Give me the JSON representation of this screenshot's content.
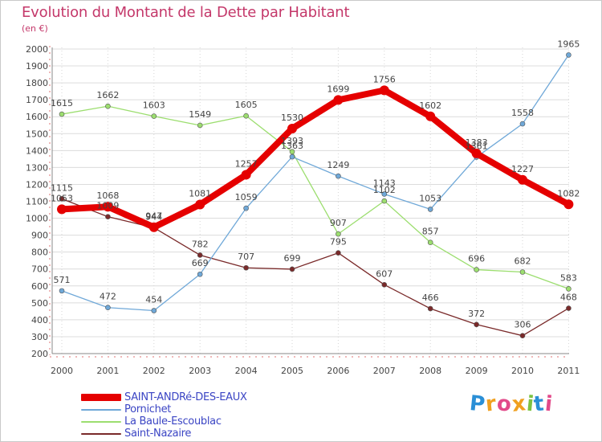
{
  "title": "Evolution du Montant de la Dette par Habitant",
  "subtitle": "(en €)",
  "chart_data": {
    "type": "line",
    "title": "Evolution du Montant de la Dette par Habitant",
    "ylabel": "(en €)",
    "xlabel": "",
    "ylim": [
      200,
      2000
    ],
    "yticks": [
      200,
      300,
      400,
      500,
      600,
      700,
      800,
      900,
      1000,
      1100,
      1200,
      1300,
      1400,
      1500,
      1600,
      1700,
      1800,
      1900,
      2000
    ],
    "x": [
      "2000",
      "2001",
      "2002",
      "2003",
      "2004",
      "2005",
      "2006",
      "2007",
      "2008",
      "2009",
      "2010",
      "2011"
    ],
    "grid": true,
    "legend": "bottom-left",
    "series": [
      {
        "name": "SAINT-ANDRé-DES-EAUX",
        "color": "#e50000",
        "values": [
          1053,
          1068,
          947,
          1081,
          1257,
          1530,
          1699,
          1756,
          1602,
          1383,
          1227,
          1082
        ],
        "labels": [
          "1053",
          "1068",
          "947",
          "1081",
          "1257",
          "1530",
          "1699",
          "1756",
          "1602",
          "1383",
          "1227",
          "1082"
        ]
      },
      {
        "name": "Pornichet",
        "color": "#6fa8d8",
        "values": [
          571,
          472,
          454,
          669,
          1059,
          1363,
          1249,
          1143,
          1053,
          1361,
          1558,
          1965
        ],
        "labels": [
          "571",
          "472",
          "454",
          "669",
          "1059",
          "1363",
          "1249",
          "1143",
          "1053",
          "1361",
          "1558",
          "1965"
        ]
      },
      {
        "name": "La Baule-Escoublac",
        "color": "#9cde6f",
        "values": [
          1615,
          1662,
          1603,
          1549,
          1605,
          1393,
          907,
          1102,
          857,
          696,
          682,
          583
        ],
        "labels": [
          "1615",
          "1662",
          "1603",
          "1549",
          "1605",
          "1393",
          "907",
          "1102",
          "857",
          "696",
          "682",
          "583"
        ]
      },
      {
        "name": "Saint-Nazaire",
        "color": "#7a2a2a",
        "values": [
          1115,
          1009,
          944,
          782,
          707,
          699,
          795,
          607,
          466,
          372,
          306,
          468
        ],
        "labels": [
          "1115",
          "1009",
          "944",
          "782",
          "707",
          "699",
          "795",
          "607",
          "466",
          "372",
          "306",
          "468"
        ]
      }
    ]
  },
  "logo": {
    "letters": [
      "P",
      "r",
      "o",
      "x",
      "i",
      "t",
      "i"
    ],
    "colors": [
      "#2a8fd6",
      "#f0a020",
      "#e24a8a",
      "#f0a020",
      "#7cc242",
      "#2a8fd6",
      "#e24a8a"
    ]
  }
}
